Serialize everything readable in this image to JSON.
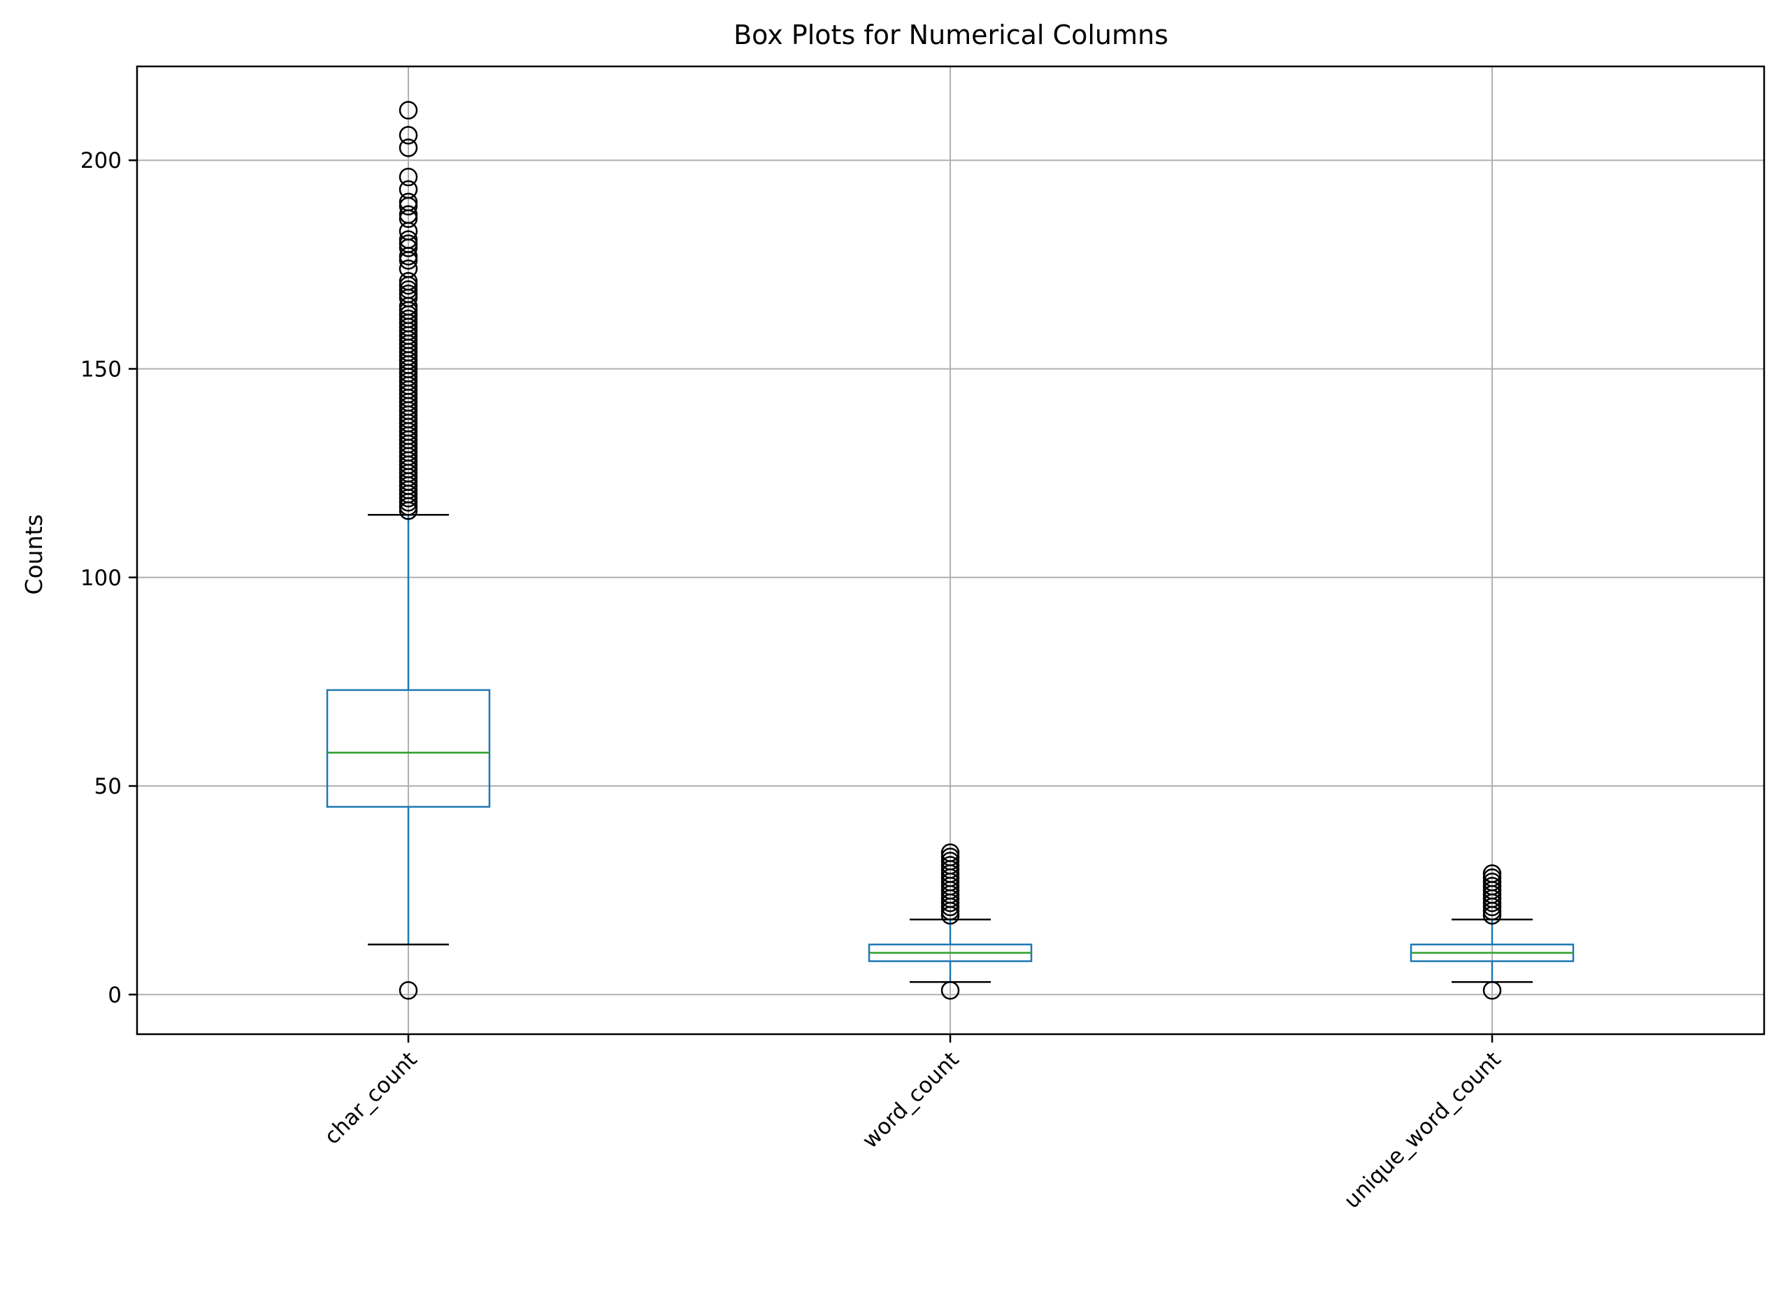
{
  "chart_data": {
    "type": "box",
    "title": "Box Plots for Numerical Columns",
    "xlabel": "",
    "ylabel": "Counts",
    "ylim": [
      -9.5,
      222.5
    ],
    "yticks": [
      0,
      50,
      100,
      150,
      200
    ],
    "grid": true,
    "colors": {
      "box": "#1f77b4",
      "median": "#2ca02c",
      "whisker": "#1f77b4",
      "cap": "#000000",
      "flier": "#000000",
      "grid": "#b0b0b0"
    },
    "categories": [
      "char_count",
      "word_count",
      "unique_word_count"
    ],
    "boxes": [
      {
        "name": "char_count",
        "whisker_low": 12,
        "q1": 45,
        "median": 58,
        "q3": 73,
        "whisker_high": 115,
        "outliers": [
          1,
          116,
          117,
          118,
          119,
          120,
          121,
          122,
          123,
          124,
          125,
          126,
          127,
          128,
          129,
          130,
          131,
          132,
          133,
          134,
          135,
          136,
          137,
          138,
          139,
          140,
          141,
          142,
          143,
          144,
          145,
          146,
          147,
          148,
          149,
          150,
          151,
          152,
          153,
          154,
          155,
          156,
          157,
          158,
          159,
          160,
          161,
          162,
          163,
          164,
          165,
          167,
          168,
          169,
          170,
          171,
          174,
          176,
          177,
          179,
          180,
          181,
          183,
          186,
          187,
          189,
          190,
          193,
          196,
          203,
          206,
          212
        ]
      },
      {
        "name": "word_count",
        "whisker_low": 3,
        "q1": 8,
        "median": 10,
        "q3": 12,
        "whisker_high": 18,
        "outliers": [
          1,
          19,
          20,
          21,
          22,
          23,
          24,
          25,
          26,
          27,
          28,
          29,
          30,
          31,
          32,
          33,
          34
        ]
      },
      {
        "name": "unique_word_count",
        "whisker_low": 3,
        "q1": 8,
        "median": 10,
        "q3": 12,
        "whisker_high": 18,
        "outliers": [
          1,
          19,
          20,
          21,
          22,
          23,
          24,
          25,
          26,
          27,
          28,
          29
        ]
      }
    ]
  }
}
